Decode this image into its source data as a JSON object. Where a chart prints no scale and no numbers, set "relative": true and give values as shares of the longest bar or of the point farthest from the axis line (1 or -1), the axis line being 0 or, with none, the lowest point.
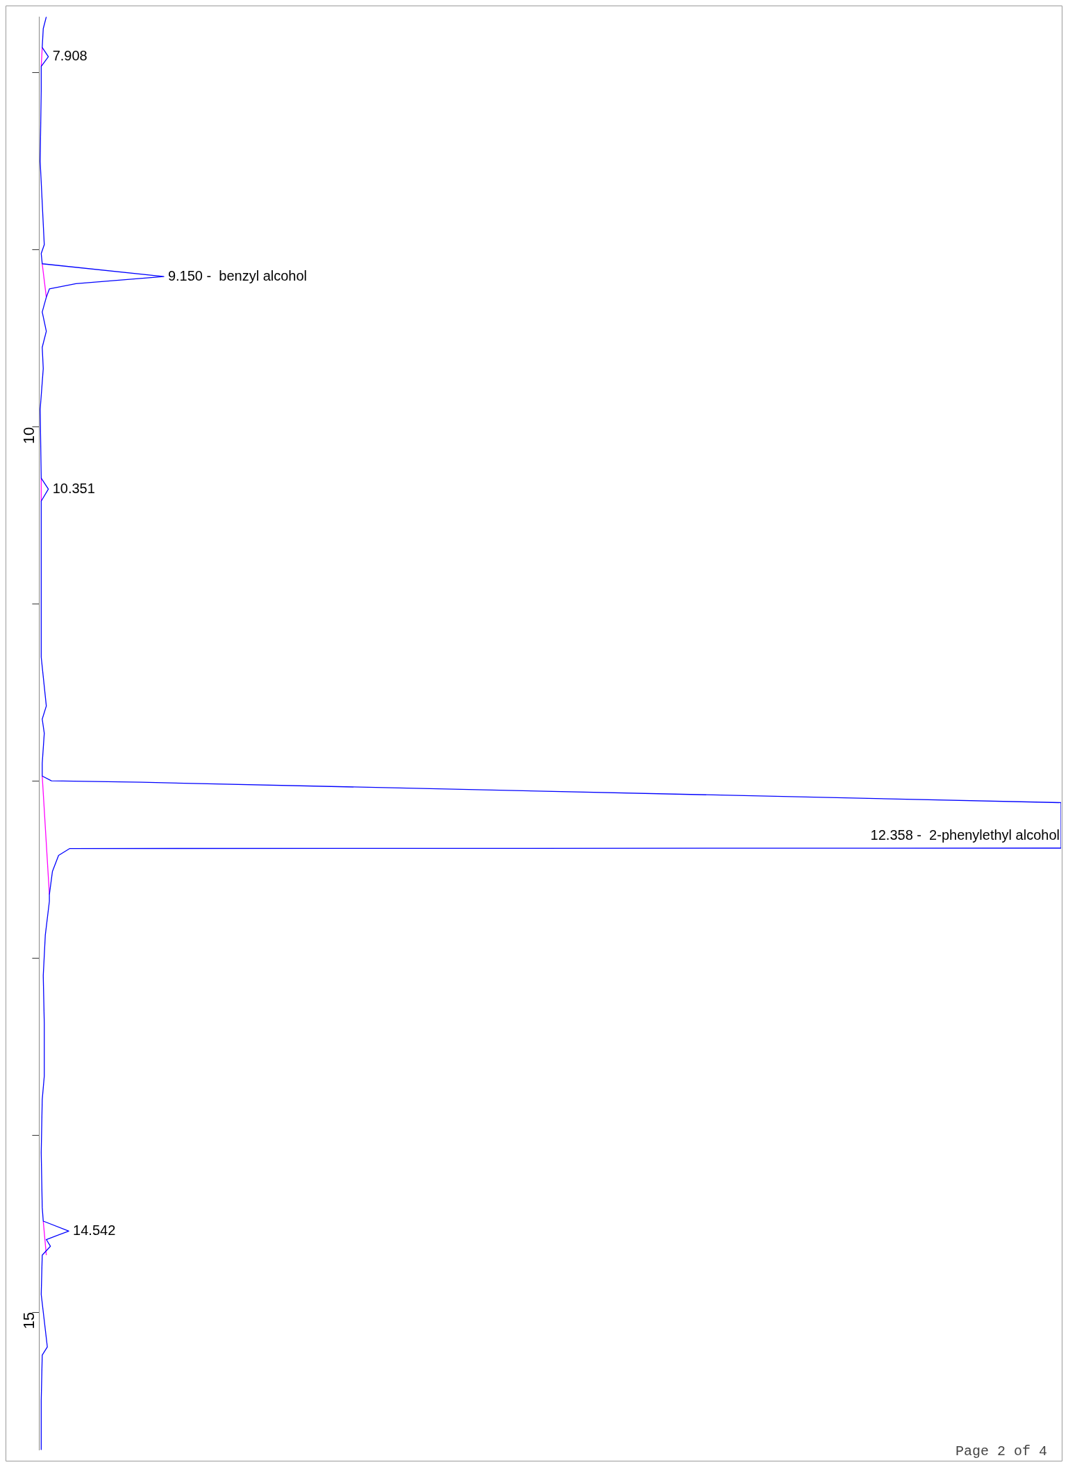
{
  "chart_data": {
    "type": "line",
    "orientation": "horizontal",
    "relative": true,
    "marker": "none",
    "grid": false,
    "legend": false,
    "tick_labels": "y",
    "ylim": [
      15.78,
      7.683
    ],
    "yticks": [
      {
        "value": 8,
        "label": null
      },
      {
        "value": 9,
        "label": null
      },
      10,
      {
        "value": 11,
        "label": null
      },
      {
        "value": 12,
        "label": null
      },
      {
        "value": 13,
        "label": null
      },
      {
        "value": 14,
        "label": null
      },
      15
    ],
    "series": [
      {
        "color": "#0000ff",
        "x": [
          7.683,
          7.75,
          7.856,
          7.908,
          7.963,
          8.1,
          8.5,
          8.97,
          9.02,
          9.078,
          9.15,
          9.19,
          9.22,
          9.267,
          9.35,
          9.459,
          9.55,
          9.67,
          9.9,
          10.289,
          10.351,
          10.419,
          10.8,
          11.3,
          11.576,
          11.65,
          11.73,
          11.9,
          11.972,
          11.999,
          12.007,
          12.122,
          12.379,
          12.381,
          12.42,
          12.51,
          12.641,
          12.679,
          12.871,
          13.1,
          13.371,
          13.667,
          13.8,
          14.1,
          14.409,
          14.486,
          14.542,
          14.59,
          14.628,
          14.678,
          14.9,
          15.197,
          15.243,
          15.5,
          15.777
        ],
        "values": [
          0.007,
          0.004,
          0.003,
          0.009,
          0.002,
          0.002,
          0.001,
          0.005,
          0.002,
          0.003,
          0.122,
          0.036,
          0.01,
          0.007,
          0.003,
          0.007,
          0.003,
          0.004,
          0.001,
          0.002,
          0.009,
          0.002,
          0.002,
          0.002,
          0.007,
          0.003,
          0.005,
          0.003,
          0.003,
          0.012,
          0.1,
          1,
          1,
          0.03,
          0.019,
          0.013,
          0.01,
          0.01,
          0.006,
          0.004,
          0.005,
          0.005,
          0.003,
          0.002,
          0.003,
          0.004,
          0.029,
          0.007,
          0.011,
          0.003,
          0.002,
          0.008,
          0.003,
          0.002,
          0.002
        ]
      },
      {
        "color": "#ff00ff",
        "x": [
          7.856,
          7.963,
          8.5,
          9.078,
          9.267,
          9.8,
          10.289,
          10.419,
          11.0,
          11.972,
          12.641,
          13.5,
          14.486,
          14.678
        ],
        "values": [
          0.003,
          0.002,
          null,
          0.003,
          0.007,
          null,
          0.002,
          0.002,
          null,
          0.003,
          0.01,
          null,
          0.004,
          0.007
        ]
      }
    ],
    "annotations": [
      {
        "text": "7.908",
        "x": 0.009,
        "y": 7.908
      },
      {
        "text": "9.150 -  benzyl alcohol",
        "x": 0.122,
        "y": 9.15
      },
      {
        "text": "10.351",
        "x": 0.009,
        "y": 10.351
      },
      {
        "text": "12.358 -  2-phenylethyl alcohol",
        "x": 1,
        "y": 12.358
      },
      {
        "text": "14.542",
        "x": 0.029,
        "y": 14.542
      },
      "Page 2 of 4"
    ]
  }
}
